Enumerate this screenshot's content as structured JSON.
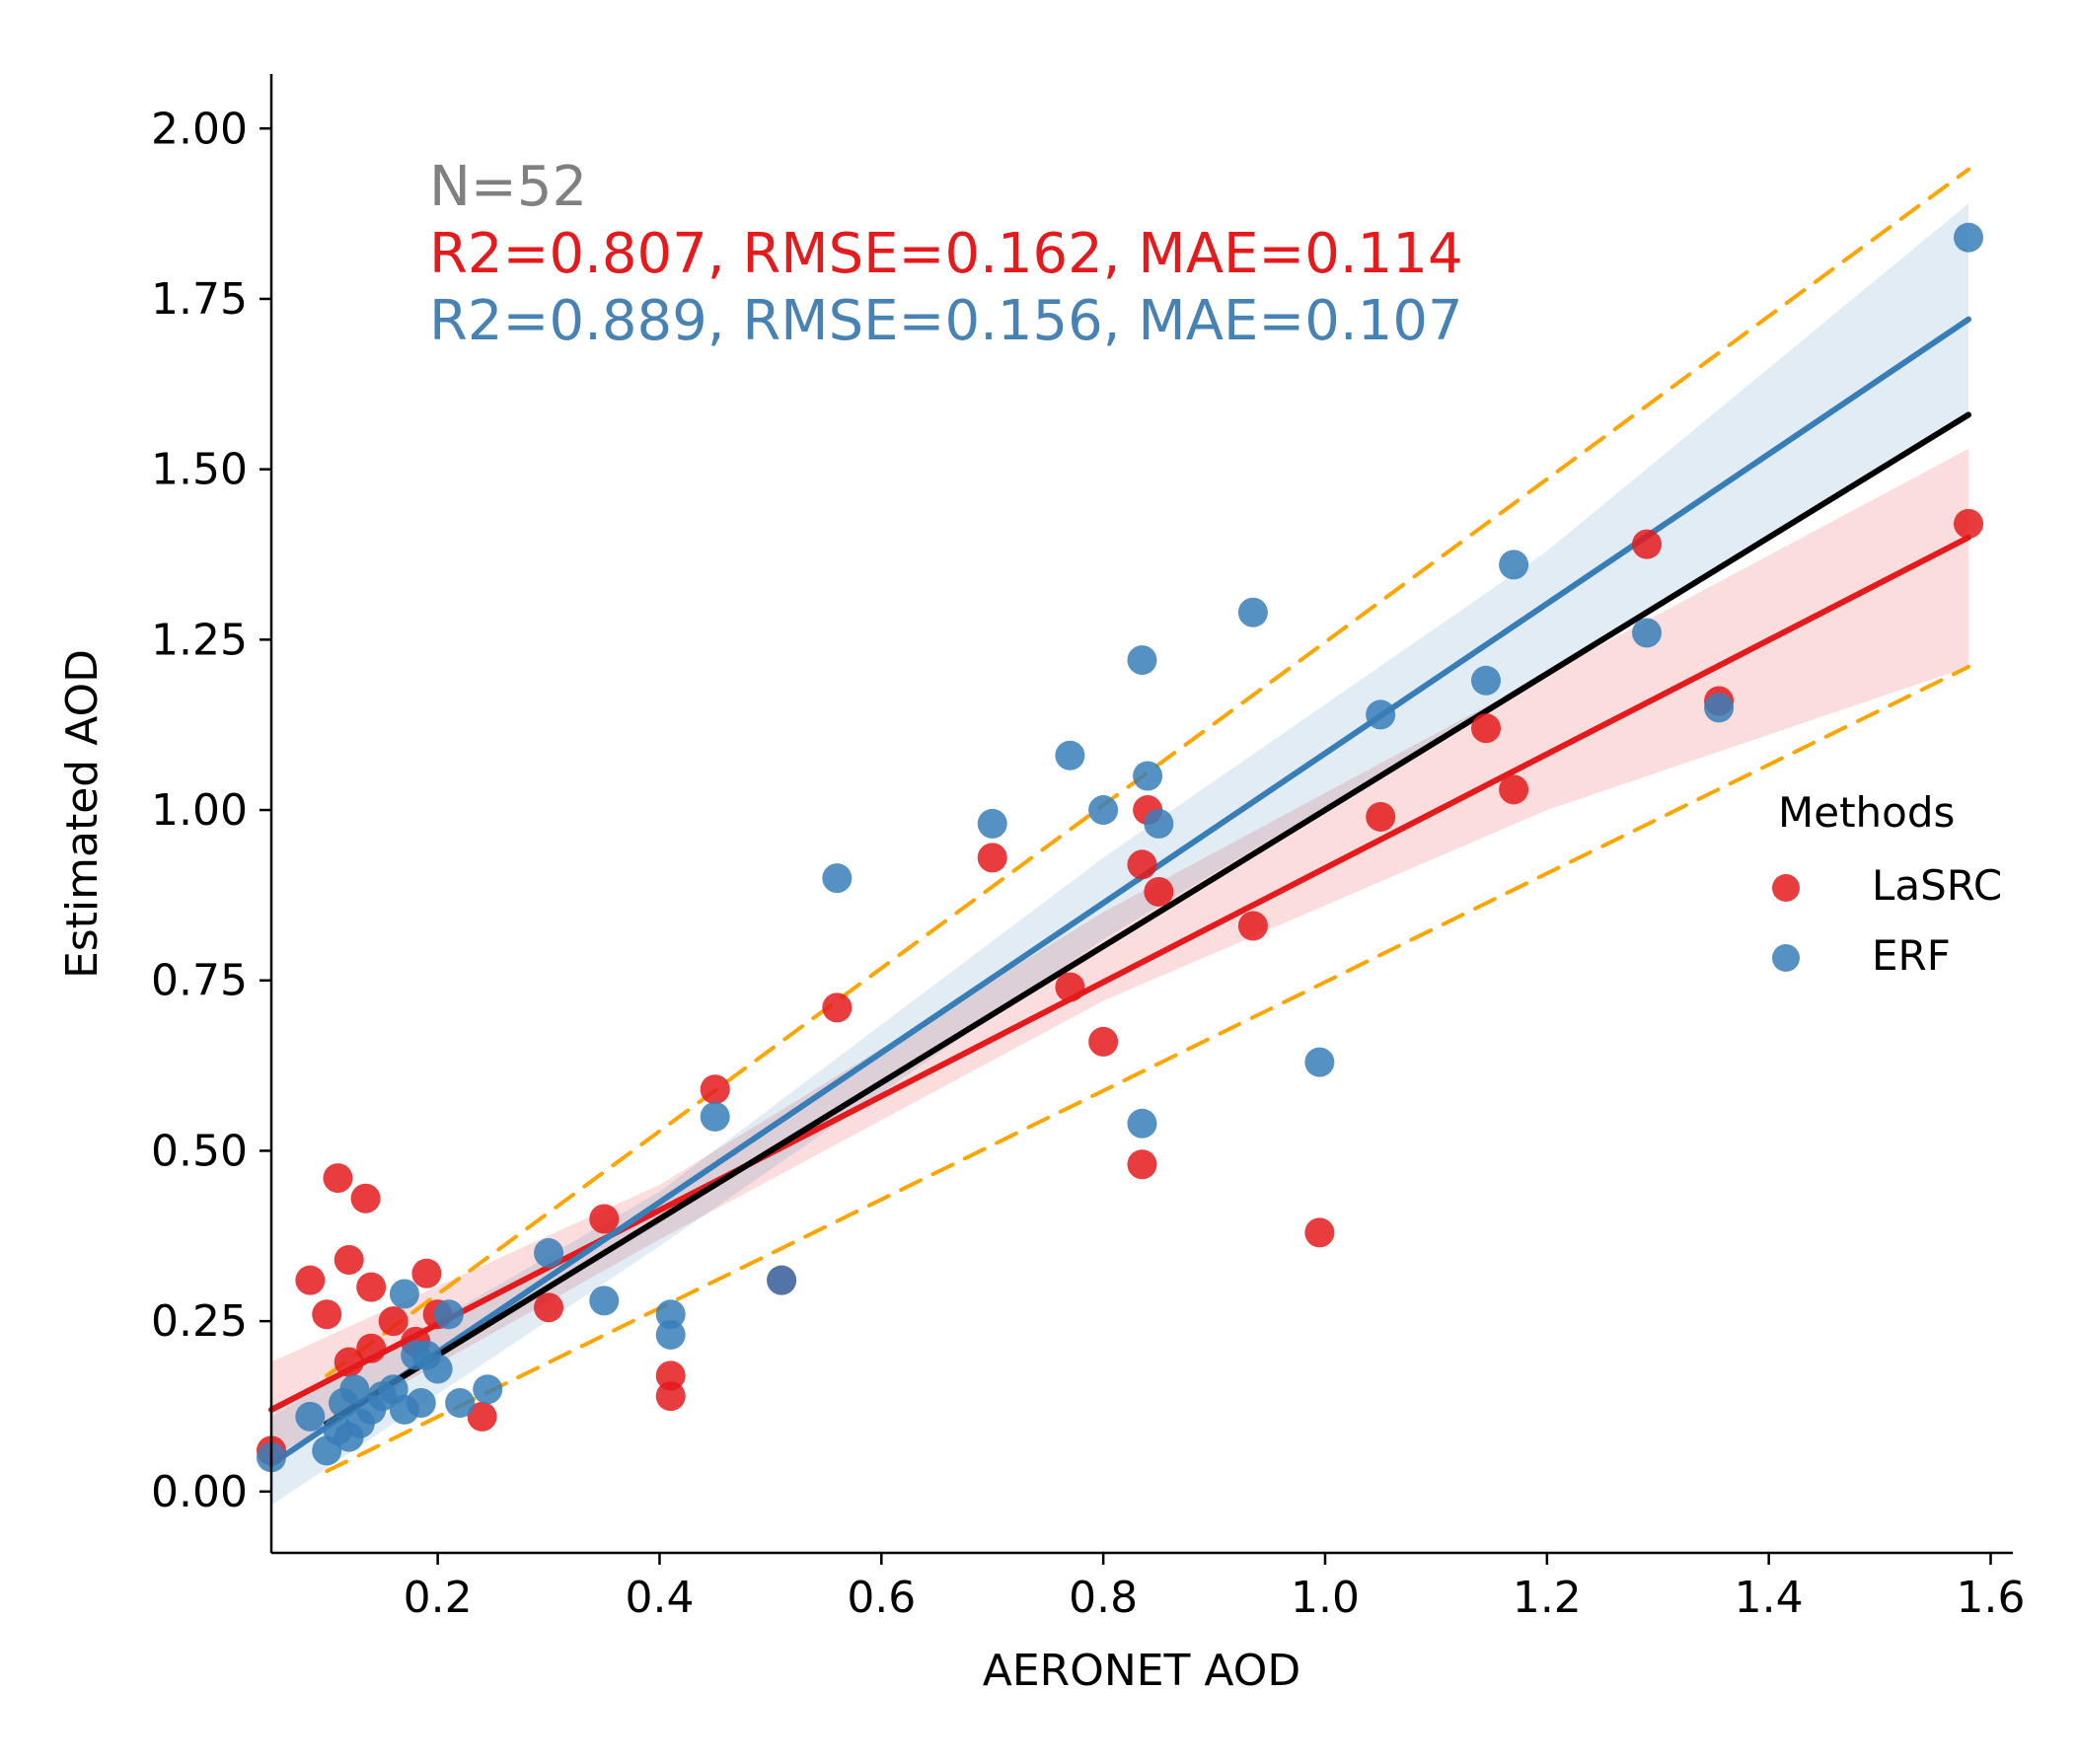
{
  "chart_data": {
    "type": "scatter",
    "title": "",
    "xlabel": "AERONET AOD",
    "ylabel": "Estimated AOD",
    "xlim": [
      0.05,
      1.62
    ],
    "ylim": [
      -0.09,
      2.08
    ],
    "x_ticks": [
      0.2,
      0.4,
      0.6,
      0.8,
      1.0,
      1.2,
      1.4,
      1.6
    ],
    "x_tick_labels": [
      "0.2",
      "0.4",
      "0.6",
      "0.8",
      "1.0",
      "1.2",
      "1.4",
      "1.6"
    ],
    "y_ticks": [
      0.0,
      0.25,
      0.5,
      0.75,
      1.0,
      1.25,
      1.5,
      1.75,
      2.0
    ],
    "y_tick_labels": [
      "0.00",
      "0.25",
      "0.50",
      "0.75",
      "1.00",
      "1.25",
      "1.50",
      "1.75",
      "2.00"
    ],
    "grid": false,
    "annotations": {
      "n": "N=52",
      "lasrc_stats": "R2=0.807, RMSE=0.162, MAE=0.114",
      "erf_stats": "R2=0.889, RMSE=0.156, MAE=0.107"
    },
    "legend": {
      "title": "Methods",
      "placement": "center-right",
      "entries": [
        {
          "label": "LaSRC",
          "color": "#e41a1c"
        },
        {
          "label": "ERF",
          "color": "#377eb8"
        }
      ]
    },
    "series": [
      {
        "name": "LaSRC",
        "color": "#e41a1c",
        "points": [
          [
            0.05,
            0.06
          ],
          [
            0.085,
            0.31
          ],
          [
            0.1,
            0.26
          ],
          [
            0.11,
            0.46
          ],
          [
            0.12,
            0.34
          ],
          [
            0.135,
            0.43
          ],
          [
            0.14,
            0.3
          ],
          [
            0.12,
            0.19
          ],
          [
            0.14,
            0.21
          ],
          [
            0.16,
            0.25
          ],
          [
            0.18,
            0.22
          ],
          [
            0.19,
            0.32
          ],
          [
            0.2,
            0.26
          ],
          [
            0.24,
            0.11
          ],
          [
            0.3,
            0.27
          ],
          [
            0.35,
            0.4
          ],
          [
            0.41,
            0.17
          ],
          [
            0.41,
            0.14
          ],
          [
            0.45,
            0.59
          ],
          [
            0.51,
            0.31
          ],
          [
            0.56,
            0.71
          ],
          [
            0.7,
            0.93
          ],
          [
            0.77,
            0.74
          ],
          [
            0.8,
            0.66
          ],
          [
            0.835,
            0.48
          ],
          [
            0.835,
            0.92
          ],
          [
            0.84,
            1.0
          ],
          [
            0.85,
            0.88
          ],
          [
            0.935,
            0.83
          ],
          [
            0.995,
            0.38
          ],
          [
            1.05,
            0.99
          ],
          [
            1.145,
            1.12
          ],
          [
            1.17,
            1.03
          ],
          [
            1.29,
            1.39
          ],
          [
            1.355,
            1.16
          ],
          [
            1.58,
            1.42
          ]
        ]
      },
      {
        "name": "ERF",
        "color": "#377eb8",
        "points": [
          [
            0.05,
            0.05
          ],
          [
            0.085,
            0.11
          ],
          [
            0.1,
            0.06
          ],
          [
            0.11,
            0.09
          ],
          [
            0.115,
            0.13
          ],
          [
            0.12,
            0.08
          ],
          [
            0.125,
            0.15
          ],
          [
            0.13,
            0.1
          ],
          [
            0.14,
            0.12
          ],
          [
            0.15,
            0.14
          ],
          [
            0.16,
            0.15
          ],
          [
            0.17,
            0.12
          ],
          [
            0.17,
            0.29
          ],
          [
            0.18,
            0.2
          ],
          [
            0.185,
            0.13
          ],
          [
            0.19,
            0.2
          ],
          [
            0.2,
            0.18
          ],
          [
            0.21,
            0.26
          ],
          [
            0.22,
            0.13
          ],
          [
            0.245,
            0.15
          ],
          [
            0.3,
            0.35
          ],
          [
            0.35,
            0.28
          ],
          [
            0.41,
            0.26
          ],
          [
            0.41,
            0.23
          ],
          [
            0.45,
            0.55
          ],
          [
            0.51,
            0.31
          ],
          [
            0.56,
            0.9
          ],
          [
            0.7,
            0.98
          ],
          [
            0.77,
            1.08
          ],
          [
            0.8,
            1.0
          ],
          [
            0.835,
            0.54
          ],
          [
            0.835,
            1.22
          ],
          [
            0.84,
            1.05
          ],
          [
            0.85,
            0.98
          ],
          [
            0.935,
            1.29
          ],
          [
            0.995,
            0.63
          ],
          [
            1.05,
            1.14
          ],
          [
            1.145,
            1.19
          ],
          [
            1.17,
            1.36
          ],
          [
            1.29,
            1.26
          ],
          [
            1.355,
            1.15
          ],
          [
            1.58,
            1.84
          ]
        ]
      }
    ],
    "lines": [
      {
        "name": "LaSRC fit",
        "color": "#e41a1c",
        "x": [
          0.05,
          1.58
        ],
        "y": [
          0.12,
          1.4
        ]
      },
      {
        "name": "ERF fit",
        "color": "#377eb8",
        "x": [
          0.05,
          1.58
        ],
        "y": [
          0.04,
          1.72
        ]
      },
      {
        "name": "1:1 line",
        "color": "#000000",
        "x": [
          0.1,
          1.58
        ],
        "y": [
          0.1,
          1.58
        ]
      },
      {
        "name": "upper envelope",
        "color": "#ffa500",
        "style": "dashed",
        "x": [
          0.1,
          1.58
        ],
        "y": [
          0.17,
          1.94
        ]
      },
      {
        "name": "lower envelope",
        "color": "#ffa500",
        "style": "dashed",
        "x": [
          0.1,
          1.58
        ],
        "y": [
          0.03,
          1.21
        ]
      }
    ],
    "confidence_bands": [
      {
        "name": "LaSRC CI",
        "color": "#e41a1c",
        "x": [
          0.05,
          0.4,
          0.8,
          1.2,
          1.58
        ],
        "lower": [
          0.05,
          0.37,
          0.72,
          1.0,
          1.21
        ],
        "upper": [
          0.19,
          0.45,
          0.85,
          1.2,
          1.53
        ]
      },
      {
        "name": "ERF CI",
        "color": "#377eb8",
        "x": [
          0.05,
          0.4,
          0.8,
          1.2,
          1.58
        ],
        "lower": [
          -0.02,
          0.36,
          0.81,
          1.2,
          1.58
        ],
        "upper": [
          0.11,
          0.44,
          0.93,
          1.38,
          1.89
        ]
      }
    ]
  }
}
